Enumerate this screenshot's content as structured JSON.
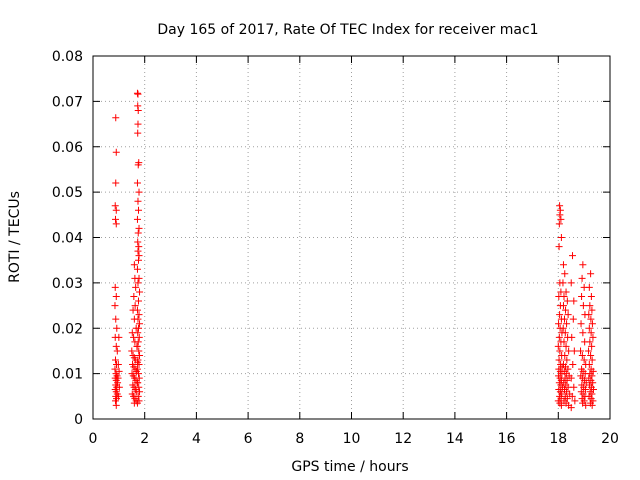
{
  "chart_data": {
    "type": "scatter",
    "title": "Day 165 of 2017, Rate Of TEC Index for receiver mac1",
    "xlabel": "GPS time / hours",
    "ylabel": "ROTI / TECUs",
    "xlim": [
      0,
      20
    ],
    "ylim": [
      0,
      0.08
    ],
    "grid": true,
    "marker": "+",
    "color": "#ff0000",
    "x_ticks": [
      "0",
      "2",
      "4",
      "6",
      "8",
      "10",
      "12",
      "14",
      "16",
      "18",
      "20"
    ],
    "y_ticks": [
      "0",
      "0.01",
      "0.02",
      "0.03",
      "0.04",
      "0.05",
      "0.06",
      "0.07",
      "0.08"
    ],
    "x_tick_values": [
      0,
      2,
      4,
      6,
      8,
      10,
      12,
      14,
      16,
      18,
      20
    ],
    "y_tick_values": [
      0,
      0.01,
      0.02,
      0.03,
      0.04,
      0.05,
      0.06,
      0.07,
      0.08
    ],
    "series": [
      {
        "name": "ROTI",
        "points": [
          [
            0.88,
            0.0664
          ],
          [
            0.9,
            0.0588
          ],
          [
            0.88,
            0.052
          ],
          [
            0.86,
            0.047
          ],
          [
            0.9,
            0.046
          ],
          [
            0.87,
            0.044
          ],
          [
            0.9,
            0.043
          ],
          [
            0.86,
            0.029
          ],
          [
            0.9,
            0.027
          ],
          [
            0.85,
            0.025
          ],
          [
            0.88,
            0.022
          ],
          [
            0.92,
            0.02
          ],
          [
            0.86,
            0.018
          ],
          [
            0.9,
            0.016
          ],
          [
            0.94,
            0.015
          ],
          [
            0.87,
            0.013
          ],
          [
            0.91,
            0.012
          ],
          [
            0.85,
            0.011
          ],
          [
            0.89,
            0.01
          ],
          [
            0.93,
            0.0095
          ],
          [
            0.86,
            0.009
          ],
          [
            0.9,
            0.0085
          ],
          [
            0.95,
            0.008
          ],
          [
            0.88,
            0.0075
          ],
          [
            0.92,
            0.007
          ],
          [
            0.86,
            0.0065
          ],
          [
            0.9,
            0.006
          ],
          [
            0.94,
            0.0055
          ],
          [
            0.88,
            0.005
          ],
          [
            0.91,
            0.0045
          ],
          [
            0.87,
            0.004
          ],
          [
            0.9,
            0.003
          ],
          [
            0.98,
            0.012
          ],
          [
            1.0,
            0.018
          ],
          [
            0.97,
            0.009
          ],
          [
            1.02,
            0.007
          ],
          [
            0.99,
            0.005
          ],
          [
            1.01,
            0.0105
          ],
          [
            1.6,
            0.034
          ],
          [
            1.62,
            0.031
          ],
          [
            1.65,
            0.029
          ],
          [
            1.58,
            0.027
          ],
          [
            1.63,
            0.025
          ],
          [
            1.55,
            0.024
          ],
          [
            1.6,
            0.022
          ],
          [
            1.67,
            0.02
          ],
          [
            1.52,
            0.019
          ],
          [
            1.57,
            0.018
          ],
          [
            1.62,
            0.017
          ],
          [
            1.7,
            0.016
          ],
          [
            1.5,
            0.015
          ],
          [
            1.55,
            0.014
          ],
          [
            1.6,
            0.0135
          ],
          [
            1.65,
            0.013
          ],
          [
            1.72,
            0.0125
          ],
          [
            1.53,
            0.012
          ],
          [
            1.58,
            0.0115
          ],
          [
            1.63,
            0.011
          ],
          [
            1.68,
            0.0105
          ],
          [
            1.51,
            0.01
          ],
          [
            1.56,
            0.0095
          ],
          [
            1.61,
            0.009
          ],
          [
            1.66,
            0.0085
          ],
          [
            1.71,
            0.008
          ],
          [
            1.54,
            0.0075
          ],
          [
            1.59,
            0.007
          ],
          [
            1.64,
            0.0065
          ],
          [
            1.69,
            0.006
          ],
          [
            1.52,
            0.0055
          ],
          [
            1.57,
            0.005
          ],
          [
            1.62,
            0.0045
          ],
          [
            1.67,
            0.004
          ],
          [
            1.6,
            0.0035
          ],
          [
            1.72,
            0.0718
          ],
          [
            1.74,
            0.0716
          ],
          [
            1.73,
            0.069
          ],
          [
            1.75,
            0.068
          ],
          [
            1.74,
            0.065
          ],
          [
            1.73,
            0.063
          ],
          [
            1.77,
            0.0565
          ],
          [
            1.75,
            0.056
          ],
          [
            1.72,
            0.052
          ],
          [
            1.78,
            0.05
          ],
          [
            1.74,
            0.048
          ],
          [
            1.76,
            0.046
          ],
          [
            1.72,
            0.044
          ],
          [
            1.78,
            0.042
          ],
          [
            1.75,
            0.041
          ],
          [
            1.73,
            0.039
          ],
          [
            1.77,
            0.038
          ],
          [
            1.74,
            0.037
          ],
          [
            1.78,
            0.036
          ],
          [
            1.76,
            0.035
          ],
          [
            1.72,
            0.033
          ],
          [
            1.78,
            0.031
          ],
          [
            1.74,
            0.03
          ],
          [
            1.8,
            0.028
          ],
          [
            1.76,
            0.026
          ],
          [
            1.72,
            0.024
          ],
          [
            1.78,
            0.023
          ],
          [
            1.74,
            0.022
          ],
          [
            1.8,
            0.021
          ],
          [
            1.76,
            0.02
          ],
          [
            1.73,
            0.019
          ],
          [
            1.79,
            0.018
          ],
          [
            1.75,
            0.017
          ],
          [
            1.71,
            0.016
          ],
          [
            1.77,
            0.015
          ],
          [
            1.8,
            0.014
          ],
          [
            1.74,
            0.013
          ],
          [
            1.78,
            0.012
          ],
          [
            1.72,
            0.011
          ],
          [
            1.76,
            0.01
          ],
          [
            1.79,
            0.009
          ],
          [
            1.73,
            0.008
          ],
          [
            1.77,
            0.007
          ],
          [
            1.8,
            0.006
          ],
          [
            1.75,
            0.005
          ],
          [
            1.78,
            0.004
          ],
          [
            1.72,
            0.0035
          ],
          [
            18.05,
            0.047
          ],
          [
            18.08,
            0.046
          ],
          [
            18.06,
            0.045
          ],
          [
            18.1,
            0.044
          ],
          [
            18.04,
            0.043
          ],
          [
            18.12,
            0.04
          ],
          [
            18.03,
            0.038
          ],
          [
            18.06,
            0.03
          ],
          [
            18.1,
            0.028
          ],
          [
            18.02,
            0.027
          ],
          [
            18.08,
            0.025
          ],
          [
            18.05,
            0.023
          ],
          [
            18.12,
            0.022
          ],
          [
            18.01,
            0.021
          ],
          [
            18.07,
            0.02
          ],
          [
            18.14,
            0.019
          ],
          [
            18.04,
            0.018
          ],
          [
            18.1,
            0.017
          ],
          [
            18.0,
            0.016
          ],
          [
            18.06,
            0.015
          ],
          [
            18.13,
            0.014
          ],
          [
            18.03,
            0.013
          ],
          [
            18.09,
            0.012
          ],
          [
            18.15,
            0.0115
          ],
          [
            18.02,
            0.011
          ],
          [
            18.08,
            0.0105
          ],
          [
            18.14,
            0.01
          ],
          [
            18.01,
            0.0095
          ],
          [
            18.07,
            0.009
          ],
          [
            18.12,
            0.0085
          ],
          [
            18.04,
            0.008
          ],
          [
            18.1,
            0.0075
          ],
          [
            18.16,
            0.007
          ],
          [
            18.02,
            0.0065
          ],
          [
            18.08,
            0.006
          ],
          [
            18.13,
            0.0055
          ],
          [
            18.05,
            0.005
          ],
          [
            18.11,
            0.0045
          ],
          [
            18.0,
            0.004
          ],
          [
            18.06,
            0.0035
          ],
          [
            18.12,
            0.003
          ],
          [
            18.2,
            0.034
          ],
          [
            18.25,
            0.032
          ],
          [
            18.18,
            0.03
          ],
          [
            18.3,
            0.028
          ],
          [
            18.22,
            0.027
          ],
          [
            18.35,
            0.026
          ],
          [
            18.2,
            0.025
          ],
          [
            18.28,
            0.024
          ],
          [
            18.38,
            0.023
          ],
          [
            18.24,
            0.022
          ],
          [
            18.32,
            0.021
          ],
          [
            18.19,
            0.02
          ],
          [
            18.27,
            0.019
          ],
          [
            18.36,
            0.018
          ],
          [
            18.22,
            0.017
          ],
          [
            18.3,
            0.016
          ],
          [
            18.4,
            0.015
          ],
          [
            18.25,
            0.014
          ],
          [
            18.33,
            0.013
          ],
          [
            18.2,
            0.012
          ],
          [
            18.28,
            0.0115
          ],
          [
            18.37,
            0.011
          ],
          [
            18.23,
            0.0105
          ],
          [
            18.31,
            0.01
          ],
          [
            18.42,
            0.0095
          ],
          [
            18.26,
            0.009
          ],
          [
            18.34,
            0.0085
          ],
          [
            18.21,
            0.008
          ],
          [
            18.29,
            0.0075
          ],
          [
            18.38,
            0.007
          ],
          [
            18.24,
            0.0065
          ],
          [
            18.32,
            0.006
          ],
          [
            18.44,
            0.0055
          ],
          [
            18.27,
            0.005
          ],
          [
            18.35,
            0.0045
          ],
          [
            18.22,
            0.004
          ],
          [
            18.3,
            0.0035
          ],
          [
            18.4,
            0.003
          ],
          [
            18.5,
            0.0025
          ],
          [
            18.55,
            0.036
          ],
          [
            18.5,
            0.03
          ],
          [
            18.6,
            0.026
          ],
          [
            18.58,
            0.022
          ],
          [
            18.52,
            0.018
          ],
          [
            18.62,
            0.015
          ],
          [
            18.56,
            0.012
          ],
          [
            18.5,
            0.009
          ],
          [
            18.6,
            0.007
          ],
          [
            18.54,
            0.005
          ],
          [
            18.64,
            0.004
          ],
          [
            18.95,
            0.034
          ],
          [
            18.92,
            0.031
          ],
          [
            19.0,
            0.029
          ],
          [
            18.9,
            0.027
          ],
          [
            18.97,
            0.025
          ],
          [
            19.03,
            0.023
          ],
          [
            18.88,
            0.021
          ],
          [
            18.95,
            0.019
          ],
          [
            19.02,
            0.017
          ],
          [
            18.86,
            0.015
          ],
          [
            18.93,
            0.014
          ],
          [
            19.0,
            0.013
          ],
          [
            19.06,
            0.012
          ],
          [
            18.9,
            0.011
          ],
          [
            18.96,
            0.0105
          ],
          [
            19.04,
            0.01
          ],
          [
            18.87,
            0.0095
          ],
          [
            18.94,
            0.009
          ],
          [
            19.01,
            0.0085
          ],
          [
            19.08,
            0.008
          ],
          [
            18.91,
            0.0075
          ],
          [
            18.98,
            0.007
          ],
          [
            19.05,
            0.0065
          ],
          [
            18.89,
            0.006
          ],
          [
            18.96,
            0.0055
          ],
          [
            19.03,
            0.005
          ],
          [
            18.92,
            0.0045
          ],
          [
            19.0,
            0.004
          ],
          [
            18.94,
            0.0035
          ],
          [
            19.06,
            0.003
          ],
          [
            19.25,
            0.032
          ],
          [
            19.2,
            0.029
          ],
          [
            19.28,
            0.027
          ],
          [
            19.22,
            0.025
          ],
          [
            19.3,
            0.024
          ],
          [
            19.18,
            0.023
          ],
          [
            19.26,
            0.022
          ],
          [
            19.32,
            0.021
          ],
          [
            19.2,
            0.02
          ],
          [
            19.27,
            0.019
          ],
          [
            19.34,
            0.018
          ],
          [
            19.22,
            0.017
          ],
          [
            19.29,
            0.016
          ],
          [
            19.17,
            0.015
          ],
          [
            19.25,
            0.014
          ],
          [
            19.31,
            0.013
          ],
          [
            19.2,
            0.012
          ],
          [
            19.27,
            0.011
          ],
          [
            19.35,
            0.0105
          ],
          [
            19.22,
            0.01
          ],
          [
            19.3,
            0.0095
          ],
          [
            19.18,
            0.009
          ],
          [
            19.26,
            0.0085
          ],
          [
            19.33,
            0.008
          ],
          [
            19.21,
            0.0075
          ],
          [
            19.28,
            0.007
          ],
          [
            19.36,
            0.0065
          ],
          [
            19.23,
            0.006
          ],
          [
            19.3,
            0.0055
          ],
          [
            19.19,
            0.005
          ],
          [
            19.27,
            0.0045
          ],
          [
            19.34,
            0.004
          ],
          [
            19.24,
            0.0035
          ],
          [
            19.31,
            0.003
          ]
        ]
      }
    ]
  }
}
